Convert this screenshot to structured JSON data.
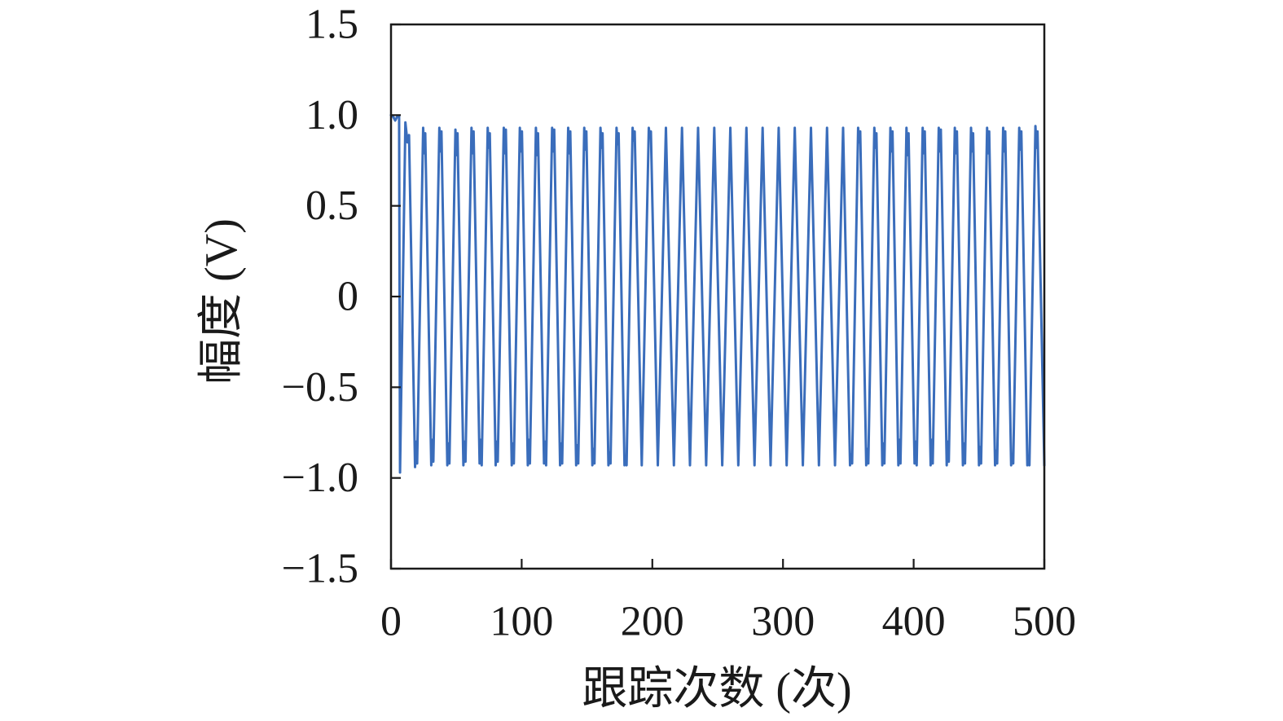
{
  "chart_data": {
    "type": "line",
    "xlabel": "跟踪次数 (次)",
    "ylabel": "幅度 (V)",
    "xlim": [
      0,
      500
    ],
    "ylim": [
      -1.5,
      1.5
    ],
    "grid": false,
    "x_ticks": [
      0,
      100,
      200,
      300,
      400,
      500
    ],
    "x_tick_labels": [
      "0",
      "100",
      "200",
      "300",
      "400",
      "500"
    ],
    "y_ticks": [
      1.5,
      1.0,
      0.5,
      0,
      -0.5,
      -1.0,
      -1.5
    ],
    "y_tick_labels": [
      "1.5",
      "1.0",
      "0.5",
      "0",
      "−0.5",
      "−1.0",
      "−1.5"
    ],
    "series": [
      {
        "color": "#3a6dbb",
        "x": [
          0,
          1.8,
          3.2,
          4.6,
          6.2,
          6.9,
          11.0,
          12.6,
          13.8,
          18.4,
          19.2,
          20.0,
          24.6,
          25.4,
          26.2,
          30.8,
          31.6,
          32.4,
          37.0,
          37.8,
          38.6,
          43.1,
          43.9,
          44.7,
          49.3,
          50.1,
          50.9,
          55.4,
          56.2,
          57.0,
          61.6,
          62.4,
          63.2,
          67.8,
          68.6,
          69.4,
          74.0,
          74.8,
          75.6,
          80.1,
          80.9,
          81.7,
          86.3,
          87.1,
          87.9,
          92.4,
          93.2,
          94.0,
          98.6,
          99.4,
          100.2,
          104.7,
          105.5,
          106.3,
          110.9,
          111.7,
          112.5,
          117.1,
          117.9,
          118.7,
          123.3,
          124.1,
          124.9,
          129.4,
          130.2,
          131.0,
          135.6,
          136.4,
          137.2,
          141.7,
          142.5,
          143.3,
          147.9,
          148.7,
          149.5,
          154.1,
          154.9,
          155.7,
          160.3,
          161.1,
          161.9,
          166.4,
          167.2,
          168.0,
          172.6,
          173.4,
          174.2,
          178.7,
          179.5,
          180.3,
          184.9,
          185.7,
          186.5,
          191.9,
          197.3,
          198.1,
          198.9,
          204.2,
          210.4,
          216.5,
          222.7,
          228.8,
          235.0,
          241.2,
          247.4,
          253.5,
          259.7,
          265.8,
          272.0,
          278.2,
          284.4,
          290.5,
          296.7,
          302.8,
          309.0,
          315.2,
          321.4,
          327.5,
          333.7,
          339.8,
          346.0,
          351.3,
          352.1,
          352.9,
          357.5,
          358.3,
          359.1,
          363.7,
          364.5,
          365.3,
          369.9,
          370.7,
          371.5,
          376.0,
          376.8,
          377.6,
          382.2,
          383.0,
          383.8,
          388.3,
          389.1,
          389.9,
          394.5,
          395.3,
          396.1,
          400.7,
          401.5,
          402.3,
          406.9,
          407.7,
          408.5,
          413.0,
          413.8,
          414.6,
          419.2,
          420.0,
          420.8,
          425.3,
          426.1,
          426.9,
          431.5,
          432.3,
          433.1,
          437.7,
          438.5,
          439.3,
          443.9,
          444.7,
          445.5,
          450.0,
          450.8,
          451.6,
          456.2,
          457.0,
          457.8,
          462.3,
          463.1,
          463.9,
          468.5,
          469.3,
          470.1,
          474.6,
          475.4,
          476.2,
          480.8,
          481.6,
          482.4,
          487.0,
          487.8,
          488.6,
          493.2,
          494.0,
          494.8,
          500
        ],
        "y": [
          1.0,
          0.99,
          0.97,
          0.99,
          0.99,
          -0.97,
          0.96,
          0.85,
          0.89,
          -0.94,
          -0.8,
          -0.92,
          0.93,
          0.79,
          0.9,
          -0.93,
          -0.79,
          -0.91,
          0.93,
          0.8,
          0.91,
          -0.93,
          -0.81,
          -0.92,
          0.92,
          0.78,
          0.9,
          -0.93,
          -0.8,
          -0.91,
          0.93,
          0.79,
          0.91,
          -0.92,
          -0.79,
          -0.93,
          0.93,
          0.82,
          0.9,
          -0.93,
          -0.8,
          -0.91,
          0.93,
          0.79,
          0.92,
          -0.93,
          -0.81,
          -0.92,
          0.93,
          0.8,
          0.91,
          -0.93,
          -0.79,
          -0.92,
          0.93,
          0.78,
          0.9,
          -0.92,
          -0.8,
          -0.93,
          0.93,
          0.8,
          0.92,
          -0.93,
          -0.81,
          -0.92,
          0.93,
          0.79,
          0.91,
          -0.93,
          -0.82,
          -0.92,
          0.93,
          0.81,
          0.91,
          -0.93,
          -0.84,
          -0.92,
          0.93,
          0.82,
          0.9,
          -0.93,
          -0.86,
          -0.92,
          0.93,
          0.84,
          0.9,
          -0.93,
          -0.88,
          -0.93,
          0.93,
          0.86,
          0.91,
          -0.93,
          0.93,
          0.88,
          0.91,
          -0.93,
          0.93,
          -0.93,
          0.93,
          -0.93,
          0.93,
          -0.93,
          0.93,
          -0.93,
          0.93,
          -0.93,
          0.93,
          -0.93,
          0.93,
          -0.93,
          0.93,
          -0.93,
          0.93,
          -0.93,
          0.93,
          -0.93,
          0.93,
          -0.93,
          0.93,
          -0.93,
          -0.87,
          -0.92,
          0.93,
          0.85,
          0.91,
          -0.93,
          -0.84,
          -0.92,
          0.93,
          0.82,
          0.9,
          -0.93,
          -0.81,
          -0.92,
          0.93,
          0.8,
          0.91,
          -0.93,
          -0.79,
          -0.92,
          0.93,
          0.78,
          0.9,
          -0.92,
          -0.8,
          -0.93,
          0.93,
          0.79,
          0.91,
          -0.93,
          -0.79,
          -0.92,
          0.93,
          0.8,
          0.92,
          -0.93,
          -0.8,
          -0.91,
          0.93,
          0.79,
          0.91,
          -0.93,
          -0.81,
          -0.92,
          0.93,
          0.8,
          0.9,
          -0.93,
          -0.83,
          -0.92,
          0.93,
          0.79,
          0.91,
          -0.93,
          -0.85,
          -0.92,
          0.93,
          0.8,
          0.91,
          -0.93,
          -0.87,
          -0.92,
          0.93,
          0.81,
          0.91,
          -0.93,
          -0.88,
          -0.93,
          0.94,
          0.82,
          0.91,
          -0.93
        ]
      }
    ]
  }
}
